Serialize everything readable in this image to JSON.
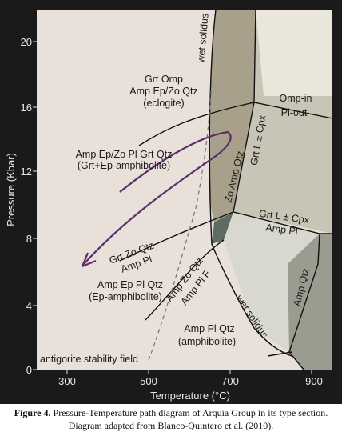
{
  "diagram": {
    "axes": {
      "x_label": "Temperature (°C)",
      "y_label": "Pressure (Kbar)",
      "x_ticks": [
        "300",
        "500",
        "700",
        "900"
      ],
      "y_ticks": [
        "0",
        "4",
        "8",
        "12",
        "16",
        "20"
      ]
    },
    "colors": {
      "frame_bg": "#1a1a1a",
      "plot_bg": "#e9e0da",
      "eclogite_field": "#e9e0da",
      "zo_amp_qtz_field": "#a8a08a",
      "grt_l_cpx_upper_field": "#c9c5b6",
      "grt_l_cpx_lower_field": "#d8d8d0",
      "amp_qtz_field": "#9b9b90",
      "far_right_field": "#eae6da",
      "dark_wedge": "#5f6b62",
      "path_arrow": "#5b2d6e",
      "caption_text": "#111111"
    },
    "labels": {
      "eclogite_1": "Grt Omp",
      "eclogite_2": "Amp Ep/Zo Qtz",
      "eclogite_3": "(eclogite)",
      "grt_ep_amph_1": "Amp Ep/Zo Pl Grt Qtz",
      "grt_ep_amph_2": "(Grt+Ep-amphibolite)",
      "ep_amph_1": "Amp Ep Pl Qtz",
      "ep_amph_2": "(Ep-amphibolite)",
      "amphibolite_1": "Amp Pl Qtz",
      "amphibolite_2": "(amphibolite)",
      "omp_in": "Omp-in",
      "pl_out": "Pl-out",
      "grt_l_cpx_upper": "Grt L ± Cpx",
      "zo_amp_qtz": "Zo Amp Qtz",
      "grt_l_cpx_mid": "Grt L ± Cpx",
      "amp_pl_mid": "Amp  Pl",
      "grt_zo_qtz": "Grt Zo Qtz",
      "amp_pl_left": "Amp  Pl",
      "amp_zo_qtz": "Amp Zo Qtz",
      "amp_pl_f": "Amp Pl F",
      "amp_qtz": "Amp Qtz",
      "wet_solidus_upper": "wet solidus",
      "wet_solidus_lower": "wet solidus",
      "antigorite": "antigorite stability field"
    }
  },
  "caption": {
    "figure_label": "Figure 4.",
    "line1": "Pressure-Temperature path diagram of Arquía Group in its type section.",
    "line2": "Diagram adapted from Blanco-Quintero et al. (2010)."
  }
}
